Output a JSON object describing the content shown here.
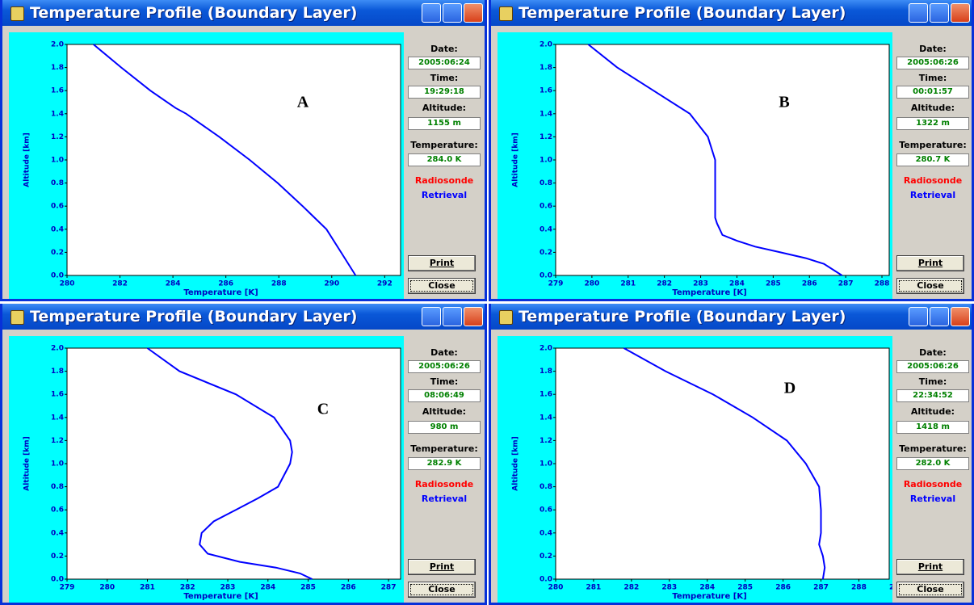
{
  "windows": [
    {
      "title": "Temperature Profile (Boundary Layer)",
      "date_label": "Date:",
      "date": "2005:06:24",
      "time_label": "Time:",
      "time": "19:29:18",
      "altitude_label": "Altitude:",
      "altitude": "1155 m",
      "temperature_label": "Temperature:",
      "temperature": "284.0 K",
      "print": "Print",
      "close": "Close"
    },
    {
      "title": "Temperature Profile (Boundary Layer)",
      "date_label": "Date:",
      "date": "2005:06:26",
      "time_label": "Time:",
      "time": "00:01:57",
      "altitude_label": "Altitude:",
      "altitude": "1322 m",
      "temperature_label": "Temperature:",
      "temperature": "280.7 K",
      "print": "Print",
      "close": "Close"
    },
    {
      "title": "Temperature Profile (Boundary Layer)",
      "date_label": "Date:",
      "date": "2005:06:26",
      "time_label": "Time:",
      "time": "08:06:49",
      "altitude_label": "Altitude:",
      "altitude": "980 m",
      "temperature_label": "Temperature:",
      "temperature": "282.9 K",
      "print": "Print",
      "close": "Close"
    },
    {
      "title": "Temperature Profile (Boundary Layer)",
      "date_label": "Date:",
      "date": "2005:06:26",
      "time_label": "Time:",
      "time": "22:34:52",
      "altitude_label": "Altitude:",
      "altitude": "1418 m",
      "temperature_label": "Temperature:",
      "temperature": "282.0 K",
      "print": "Print",
      "close": "Close"
    }
  ],
  "chart_data": [
    {
      "type": "line",
      "label": "A",
      "xlabel": "Temperature [K]",
      "ylabel": "Altitude [km]",
      "xlim": [
        280,
        292.6
      ],
      "xticks": [
        280,
        282,
        284,
        286,
        288,
        290,
        292
      ],
      "ylim": [
        0,
        2
      ],
      "yticks": [
        {
          "value": 0,
          "label": "0.0"
        },
        0.2,
        0.4,
        0.6,
        0.8,
        {
          "value": 1,
          "label": "1.0"
        },
        1.2,
        1.4,
        1.6,
        1.8,
        {
          "value": 2,
          "label": "2.0"
        }
      ],
      "series": [
        {
          "name": "Radiosonde",
          "color": "#ff0000",
          "x": [],
          "values": []
        },
        {
          "name": "Retrieval",
          "color": "#0000ff",
          "x": [
            290.9,
            290.35,
            289.8,
            288.9,
            287.96,
            286.9,
            285.75,
            284.5,
            284.1,
            283.15,
            282.05,
            281.0
          ],
          "values": [
            0,
            0.2,
            0.4,
            0.6,
            0.8,
            1.0,
            1.2,
            1.4,
            1.45,
            1.6,
            1.8,
            2.0
          ]
        }
      ]
    },
    {
      "type": "line",
      "label": "B",
      "xlabel": "Temperature [K]",
      "ylabel": "Altitude [km]",
      "xlim": [
        279,
        288.2
      ],
      "xticks": [
        279,
        280,
        281,
        282,
        283,
        284,
        285,
        286,
        287,
        288
      ],
      "ylim": [
        0,
        2
      ],
      "yticks": [
        {
          "value": 0,
          "label": "0.0"
        },
        0.2,
        0.4,
        0.6,
        0.8,
        {
          "value": 1,
          "label": "1.0"
        },
        1.2,
        1.4,
        1.6,
        1.8,
        {
          "value": 2,
          "label": "2.0"
        }
      ],
      "series": [
        {
          "name": "Radiosonde",
          "color": "#ff0000",
          "x": [],
          "values": []
        },
        {
          "name": "Retrieval",
          "color": "#0000ff",
          "x": [
            286.9,
            286.4,
            285.9,
            285.2,
            284.5,
            284.0,
            283.6,
            283.45,
            283.4,
            283.4,
            283.4,
            283.2,
            282.7,
            281.7,
            280.7,
            279.9
          ],
          "values": [
            0,
            0.1,
            0.15,
            0.2,
            0.25,
            0.3,
            0.35,
            0.45,
            0.5,
            0.8,
            1.0,
            1.2,
            1.4,
            1.6,
            1.8,
            2.0
          ]
        }
      ]
    },
    {
      "type": "line",
      "label": "C",
      "xlabel": "Temperature [K]",
      "ylabel": "Altitude [km]",
      "xlim": [
        279,
        287.3
      ],
      "xticks": [
        279,
        280,
        281,
        282,
        283,
        284,
        285,
        286,
        287
      ],
      "ylim": [
        0,
        2
      ],
      "yticks": [
        {
          "value": 0,
          "label": "0.0"
        },
        0.2,
        0.4,
        0.6,
        0.8,
        {
          "value": 1,
          "label": "1.0"
        },
        1.2,
        1.4,
        1.6,
        1.8,
        {
          "value": 2,
          "label": "2.0"
        }
      ],
      "series": [
        {
          "name": "Radiosonde",
          "color": "#ff0000",
          "x": [],
          "values": []
        },
        {
          "name": "Retrieval",
          "color": "#0000ff",
          "x": [
            285.1,
            284.8,
            284.2,
            283.3,
            282.5,
            282.3,
            282.35,
            282.65,
            283.2,
            283.75,
            284.25,
            284.55,
            284.6,
            284.55,
            284.15,
            283.2,
            281.8,
            281.0
          ],
          "values": [
            0,
            0.05,
            0.1,
            0.15,
            0.22,
            0.3,
            0.4,
            0.5,
            0.6,
            0.7,
            0.8,
            1.0,
            1.1,
            1.2,
            1.4,
            1.6,
            1.8,
            2.0
          ]
        }
      ]
    },
    {
      "type": "line",
      "label": "D",
      "xlabel": "Temperature [K]",
      "ylabel": "Altitude [km]",
      "xlim": [
        280,
        288.8
      ],
      "xticks": [
        280,
        281,
        282,
        283,
        284,
        285,
        286,
        287,
        288,
        289
      ],
      "ylim": [
        0,
        2
      ],
      "yticks": [
        {
          "value": 0,
          "label": "0.0"
        },
        0.2,
        0.4,
        0.6,
        0.8,
        {
          "value": 1,
          "label": "1.0"
        },
        1.2,
        1.4,
        1.6,
        1.8,
        {
          "value": 2,
          "label": "2.0"
        }
      ],
      "series": [
        {
          "name": "Radiosonde",
          "color": "#ff0000",
          "x": [],
          "values": []
        },
        {
          "name": "Retrieval",
          "color": "#0000ff",
          "x": [
            287.05,
            287.1,
            287.05,
            286.95,
            287.0,
            287.0,
            286.95,
            286.6,
            286.1,
            285.2,
            284.15,
            282.9,
            281.8
          ],
          "values": [
            0,
            0.1,
            0.2,
            0.3,
            0.4,
            0.6,
            0.8,
            1.0,
            1.2,
            1.4,
            1.6,
            1.8,
            2.0
          ]
        }
      ]
    }
  ]
}
